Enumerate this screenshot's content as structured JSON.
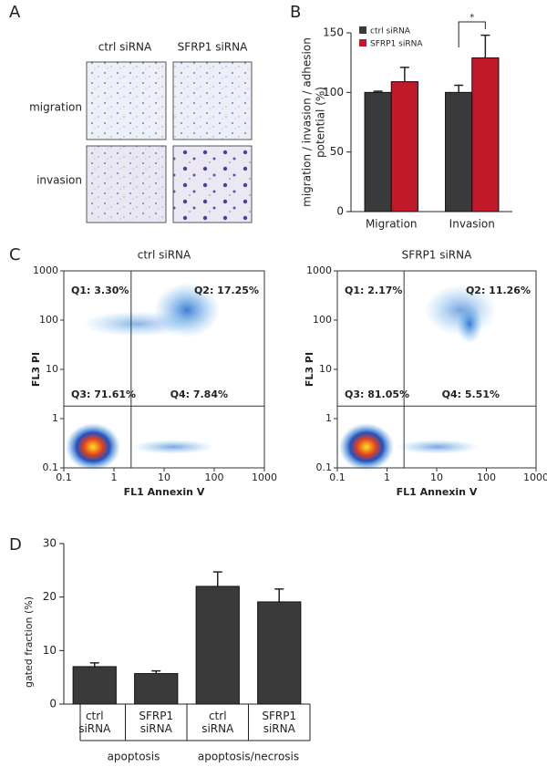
{
  "panel_labels": [
    "A",
    "B",
    "C",
    "D"
  ],
  "panel_a": {
    "columns": [
      "ctrl siRNA",
      "SFRP1 siRNA"
    ],
    "rows": [
      "migration",
      "invasion"
    ]
  },
  "chart_data": [
    {
      "type": "bar",
      "categories": [
        "Migration",
        "Invasion"
      ],
      "series": [
        {
          "name": "ctrl siRNA",
          "color": "#3a3a3a",
          "values": [
            100,
            100
          ],
          "errors": [
            1,
            6
          ]
        },
        {
          "name": "SFRP1 siRNA",
          "color": "#c0192a",
          "values": [
            109,
            129
          ],
          "errors": [
            12,
            19
          ]
        }
      ],
      "ylabel": [
        "migration / invasion / adhesion",
        "potential (%)"
      ],
      "ylim": [
        0,
        150
      ],
      "yticks": [
        0,
        50,
        100,
        150
      ],
      "annotation": "*"
    },
    {
      "type": "scatter",
      "title": "ctrl siRNA",
      "xlabel": "FL1  Annexin V",
      "ylabel": "FL3  PI",
      "log_scale": true,
      "xlim": [
        0.1,
        1000
      ],
      "ylim": [
        0.1,
        1000
      ],
      "xticks": [
        0.1,
        1,
        10,
        100,
        1000
      ],
      "yticks": [
        0.1,
        1,
        10,
        100,
        1000
      ],
      "gate": {
        "x": 2.2,
        "y": 1.8
      },
      "quadrant_labels": [
        "Q1: 3.30%",
        "Q2: 17.25%",
        "Q3: 71.61%",
        "Q4: 7.84%"
      ]
    },
    {
      "type": "scatter",
      "title": "SFRP1 siRNA",
      "xlabel": "FL1  Annexin V",
      "ylabel": "FL3  PI",
      "log_scale": true,
      "xlim": [
        0.1,
        1000
      ],
      "ylim": [
        0.1,
        1000
      ],
      "xticks": [
        0.1,
        1,
        10,
        100,
        1000
      ],
      "yticks": [
        0.1,
        1,
        10,
        100,
        1000
      ],
      "gate": {
        "x": 2.2,
        "y": 1.8
      },
      "quadrant_labels": [
        "Q1: 2.17%",
        "Q2: 11.26%",
        "Q3: 81.05%",
        "Q4: 5.51%"
      ]
    },
    {
      "type": "bar",
      "categories": [
        "ctrl siRNA",
        "SFRP1 siRNA",
        "ctrl siRNA",
        "SFRP1 siRNA"
      ],
      "values": [
        7,
        5.7,
        22,
        19.1
      ],
      "errors": [
        0.7,
        0.5,
        2.7,
        2.4
      ],
      "color": "#3a3a3a",
      "ylabel": "gated fraction (%)",
      "ylim": [
        0,
        30
      ],
      "yticks": [
        0,
        10,
        20,
        30
      ],
      "groups": [
        "apoptosis",
        "apoptosis/necrosis"
      ]
    }
  ]
}
